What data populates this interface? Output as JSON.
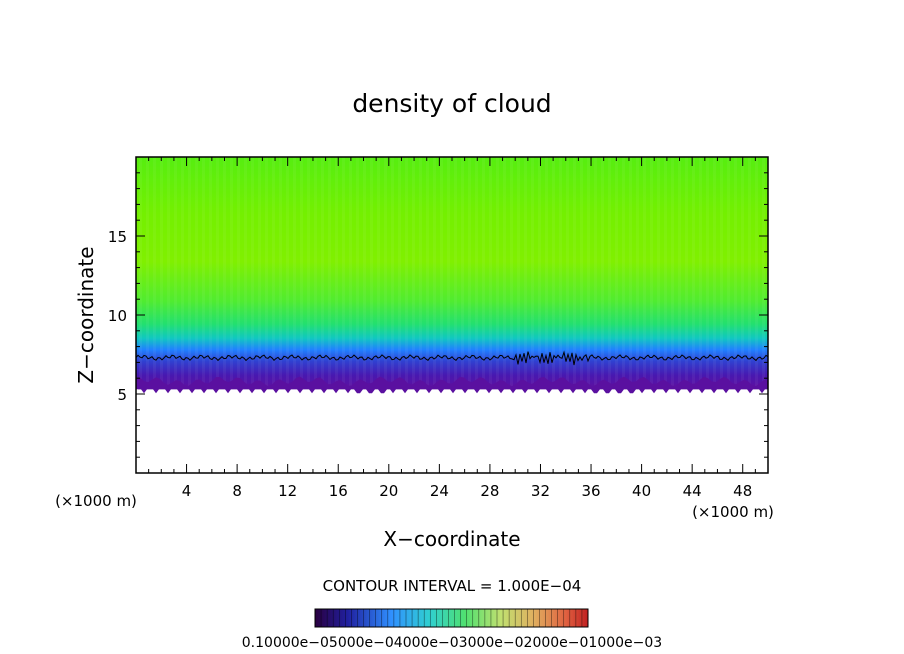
{
  "chart_data": {
    "type": "heatmap",
    "title": "density of cloud",
    "xlabel": "X−coordinate",
    "ylabel": "Z−coordinate",
    "x_unit_left": "(×1000 m)",
    "x_unit_right": "(×1000 m)",
    "xlim": [
      0,
      50
    ],
    "ylim": [
      0,
      20
    ],
    "x_ticks": [
      4,
      8,
      12,
      16,
      20,
      24,
      28,
      32,
      36,
      40,
      44,
      48
    ],
    "x_tick_labels": [
      "4",
      "8",
      "12",
      "16",
      "20",
      "24",
      "28",
      "32",
      "36",
      "40",
      "44",
      "48"
    ],
    "y_ticks": [
      5,
      10,
      15
    ],
    "y_tick_labels": [
      "5",
      "10",
      "15"
    ],
    "cloud_base_z": 5.3,
    "contour_z": 7.3,
    "contour_interval_text": "CONTOUR INTERVAL = 1.000E−04",
    "colorbar_text": "0.10000e−05000e−04000e−03000e−02000e−01000e−03",
    "colors": {
      "high": "#6cf000",
      "mid": "#22e070",
      "low": "#2080ff",
      "base": "#3a10a0",
      "deep": "#6010a0"
    }
  }
}
